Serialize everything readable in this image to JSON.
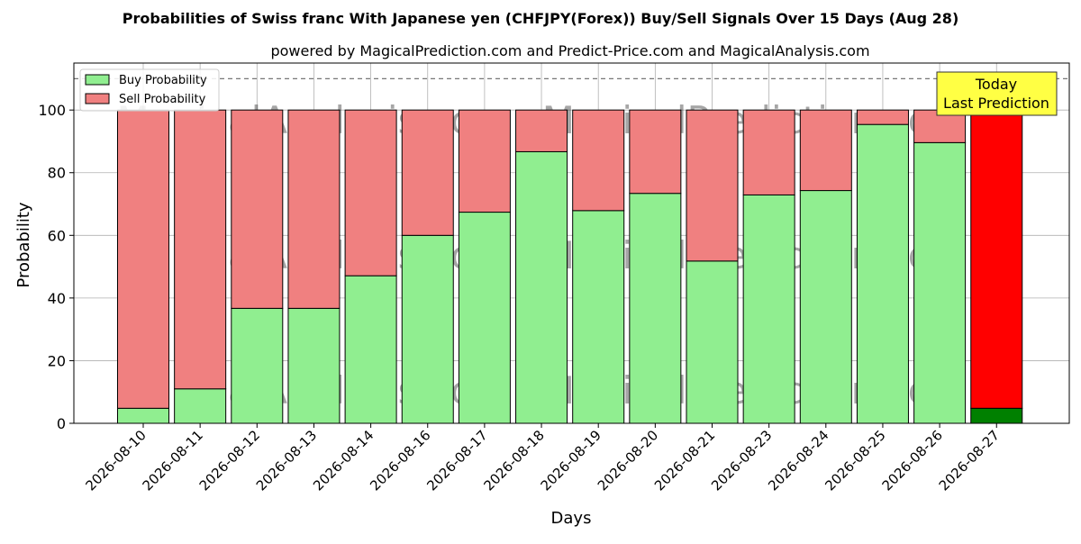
{
  "chart_data": {
    "type": "bar",
    "stacked": true,
    "title": "Probabilities of Swiss franc With Japanese yen (CHFJPY(Forex)) Buy/Sell Signals Over 15 Days (Aug 28)",
    "subtitle": "powered by MagicalPrediction.com and Predict-Price.com and MagicalAnalysis.com",
    "xlabel": "Days",
    "ylabel": "Probability",
    "ylim": [
      0,
      115
    ],
    "yticks": [
      0,
      20,
      40,
      60,
      80,
      100
    ],
    "reference_line": 110,
    "grid": true,
    "legend_position": "top-left",
    "categories": [
      "2026-08-10",
      "2026-08-11",
      "2026-08-12",
      "2026-08-13",
      "2026-08-14",
      "2026-08-16",
      "2026-08-17",
      "2026-08-18",
      "2026-08-19",
      "2026-08-20",
      "2026-08-21",
      "2026-08-23",
      "2026-08-24",
      "2026-08-25",
      "2026-08-26",
      "2026-08-27"
    ],
    "series": [
      {
        "name": "Buy Probability",
        "color": "#90ee90",
        "values": [
          4.8,
          11.0,
          36.7,
          36.7,
          47.1,
          60.0,
          67.4,
          86.7,
          67.9,
          73.4,
          51.8,
          72.9,
          74.3,
          95.4,
          89.6,
          4.8
        ]
      },
      {
        "name": "Sell Probability",
        "color": "#f08080",
        "values": [
          95.2,
          89.0,
          63.3,
          63.3,
          52.9,
          40.0,
          32.6,
          13.3,
          32.1,
          26.6,
          48.2,
          27.1,
          25.7,
          4.6,
          10.4,
          95.2
        ]
      }
    ],
    "highlight": {
      "index": 15,
      "buy_color": "#008000",
      "sell_color": "#ff0000",
      "label_line1": "Today",
      "label_line2": "Last Prediction"
    },
    "watermarks": [
      "MagicalAnalysis.com",
      "MagicalPrediction.com"
    ]
  }
}
